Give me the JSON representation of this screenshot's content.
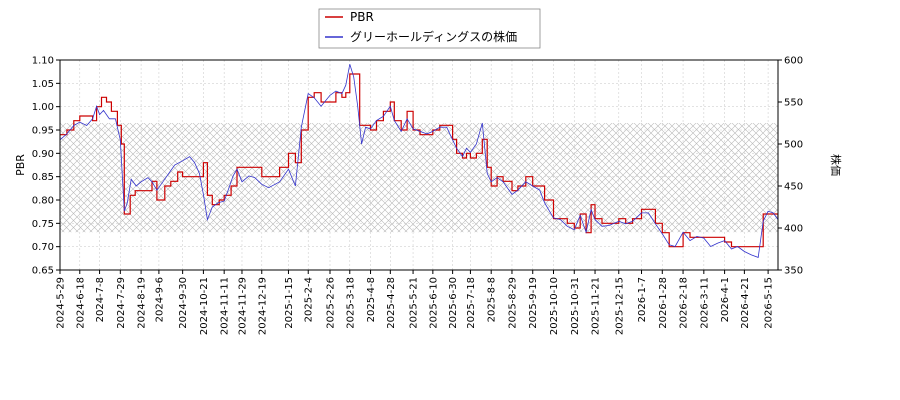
{
  "chart_data": {
    "type": "line",
    "ylabel_left": "PBR",
    "ylabel_right": "株価",
    "y_left_lim": [
      0.65,
      1.1
    ],
    "y_left_ticks": [
      "0.65",
      "0.70",
      "0.75",
      "0.80",
      "0.85",
      "0.90",
      "0.95",
      "1.00",
      "1.05",
      "1.10"
    ],
    "y_right_lim": [
      350,
      600
    ],
    "y_right_ticks": [
      "350",
      "400",
      "450",
      "500",
      "550",
      "600"
    ],
    "x_start": "2024-05-29",
    "x_end": "2026-05-25",
    "x_ticks": [
      "2024-5-29",
      "2024-6-18",
      "2024-7-8",
      "2024-7-29",
      "2024-8-19",
      "2024-9-6",
      "2024-9-30",
      "2024-10-21",
      "2024-11-11",
      "2024-11-29",
      "2024-12-19",
      "2025-1-15",
      "2025-2-4",
      "2025-2-26",
      "2025-3-18",
      "2025-4-8",
      "2025-4-28",
      "2025-5-21",
      "2025-6-10",
      "2025-6-30",
      "2025-7-18",
      "2025-8-8",
      "2025-8-29",
      "2025-9-19",
      "2025-10-10",
      "2025-10-31",
      "2025-11-21",
      "2025-12-15",
      "2026-1-7",
      "2026-1-28",
      "2026-2-18",
      "2026-3-11",
      "2026-4-1",
      "2026-4-21",
      "2026-5-15"
    ],
    "hatch_band_right": [
      395,
      525
    ],
    "grid": true,
    "legend_position": "top-center",
    "series": [
      {
        "name": "PBR",
        "axis": "left",
        "color": "#cc0000",
        "points": [
          [
            "2024-05-29",
            0.94
          ],
          [
            "2024-06-05",
            0.95
          ],
          [
            "2024-06-12",
            0.97
          ],
          [
            "2024-06-18",
            0.98
          ],
          [
            "2024-06-25",
            0.98
          ],
          [
            "2024-07-01",
            0.97
          ],
          [
            "2024-07-05",
            1.0
          ],
          [
            "2024-07-10",
            1.02
          ],
          [
            "2024-07-15",
            1.01
          ],
          [
            "2024-07-20",
            0.99
          ],
          [
            "2024-07-26",
            0.96
          ],
          [
            "2024-07-30",
            0.92
          ],
          [
            "2024-08-02",
            0.77
          ],
          [
            "2024-08-08",
            0.81
          ],
          [
            "2024-08-13",
            0.82
          ],
          [
            "2024-08-19",
            0.82
          ],
          [
            "2024-08-26",
            0.82
          ],
          [
            "2024-08-30",
            0.84
          ],
          [
            "2024-09-04",
            0.8
          ],
          [
            "2024-09-12",
            0.83
          ],
          [
            "2024-09-18",
            0.84
          ],
          [
            "2024-09-25",
            0.86
          ],
          [
            "2024-09-30",
            0.85
          ],
          [
            "2024-10-07",
            0.85
          ],
          [
            "2024-10-14",
            0.85
          ],
          [
            "2024-10-21",
            0.88
          ],
          [
            "2024-10-25",
            0.81
          ],
          [
            "2024-10-30",
            0.79
          ],
          [
            "2024-11-06",
            0.8
          ],
          [
            "2024-11-11",
            0.81
          ],
          [
            "2024-11-18",
            0.83
          ],
          [
            "2024-11-24",
            0.87
          ],
          [
            "2024-11-29",
            0.87
          ],
          [
            "2024-12-09",
            0.87
          ],
          [
            "2024-12-19",
            0.85
          ],
          [
            "2024-12-26",
            0.85
          ],
          [
            "2025-01-06",
            0.87
          ],
          [
            "2025-01-15",
            0.9
          ],
          [
            "2025-01-22",
            0.88
          ],
          [
            "2025-01-28",
            0.95
          ],
          [
            "2025-02-04",
            1.02
          ],
          [
            "2025-02-10",
            1.03
          ],
          [
            "2025-02-17",
            1.01
          ],
          [
            "2025-02-26",
            1.01
          ],
          [
            "2025-03-04",
            1.03
          ],
          [
            "2025-03-10",
            1.02
          ],
          [
            "2025-03-14",
            1.03
          ],
          [
            "2025-03-18",
            1.07
          ],
          [
            "2025-03-24",
            1.07
          ],
          [
            "2025-03-28",
            0.96
          ],
          [
            "2025-04-03",
            0.96
          ],
          [
            "2025-04-08",
            0.95
          ],
          [
            "2025-04-14",
            0.97
          ],
          [
            "2025-04-21",
            0.99
          ],
          [
            "2025-04-28",
            1.01
          ],
          [
            "2025-05-02",
            0.97
          ],
          [
            "2025-05-09",
            0.95
          ],
          [
            "2025-05-15",
            0.99
          ],
          [
            "2025-05-21",
            0.95
          ],
          [
            "2025-05-28",
            0.94
          ],
          [
            "2025-06-04",
            0.94
          ],
          [
            "2025-06-10",
            0.95
          ],
          [
            "2025-06-17",
            0.96
          ],
          [
            "2025-06-24",
            0.96
          ],
          [
            "2025-06-30",
            0.93
          ],
          [
            "2025-07-04",
            0.9
          ],
          [
            "2025-07-10",
            0.89
          ],
          [
            "2025-07-14",
            0.9
          ],
          [
            "2025-07-18",
            0.89
          ],
          [
            "2025-07-24",
            0.9
          ],
          [
            "2025-07-30",
            0.93
          ],
          [
            "2025-08-04",
            0.87
          ],
          [
            "2025-08-08",
            0.83
          ],
          [
            "2025-08-14",
            0.85
          ],
          [
            "2025-08-20",
            0.84
          ],
          [
            "2025-08-29",
            0.82
          ],
          [
            "2025-09-04",
            0.83
          ],
          [
            "2025-09-12",
            0.85
          ],
          [
            "2025-09-19",
            0.83
          ],
          [
            "2025-09-26",
            0.83
          ],
          [
            "2025-10-01",
            0.8
          ],
          [
            "2025-10-10",
            0.76
          ],
          [
            "2025-10-17",
            0.76
          ],
          [
            "2025-10-24",
            0.75
          ],
          [
            "2025-10-31",
            0.74
          ],
          [
            "2025-11-06",
            0.77
          ],
          [
            "2025-11-12",
            0.73
          ],
          [
            "2025-11-17",
            0.79
          ],
          [
            "2025-11-21",
            0.76
          ],
          [
            "2025-11-28",
            0.75
          ],
          [
            "2025-12-05",
            0.75
          ],
          [
            "2025-12-15",
            0.76
          ],
          [
            "2025-12-22",
            0.75
          ],
          [
            "2025-12-29",
            0.76
          ],
          [
            "2026-01-07",
            0.78
          ],
          [
            "2026-01-14",
            0.78
          ],
          [
            "2026-01-21",
            0.75
          ],
          [
            "2026-01-28",
            0.73
          ],
          [
            "2026-02-04",
            0.7
          ],
          [
            "2026-02-10",
            0.7
          ],
          [
            "2026-02-18",
            0.73
          ],
          [
            "2026-02-25",
            0.72
          ],
          [
            "2026-03-04",
            0.72
          ],
          [
            "2026-03-11",
            0.72
          ],
          [
            "2026-03-18",
            0.72
          ],
          [
            "2026-03-25",
            0.72
          ],
          [
            "2026-04-01",
            0.71
          ],
          [
            "2026-04-08",
            0.7
          ],
          [
            "2026-04-14",
            0.7
          ],
          [
            "2026-04-21",
            0.7
          ],
          [
            "2026-04-28",
            0.7
          ],
          [
            "2026-05-05",
            0.7
          ],
          [
            "2026-05-10",
            0.77
          ],
          [
            "2026-05-15",
            0.77
          ],
          [
            "2026-05-20",
            0.77
          ],
          [
            "2026-05-25",
            0.76
          ]
        ]
      },
      {
        "name": "グリーホールディングスの株価",
        "axis": "right",
        "color": "#3333cc",
        "points": [
          [
            "2024-05-29",
            505
          ],
          [
            "2024-06-05",
            512
          ],
          [
            "2024-06-12",
            522
          ],
          [
            "2024-06-18",
            526
          ],
          [
            "2024-06-25",
            522
          ],
          [
            "2024-07-01",
            530
          ],
          [
            "2024-07-05",
            545
          ],
          [
            "2024-07-08",
            535
          ],
          [
            "2024-07-12",
            540
          ],
          [
            "2024-07-18",
            530
          ],
          [
            "2024-07-24",
            530
          ],
          [
            "2024-07-29",
            505
          ],
          [
            "2024-08-02",
            420
          ],
          [
            "2024-08-05",
            430
          ],
          [
            "2024-08-09",
            458
          ],
          [
            "2024-08-14",
            450
          ],
          [
            "2024-08-19",
            455
          ],
          [
            "2024-08-26",
            460
          ],
          [
            "2024-08-30",
            455
          ],
          [
            "2024-09-04",
            445
          ],
          [
            "2024-09-10",
            455
          ],
          [
            "2024-09-16",
            465
          ],
          [
            "2024-09-22",
            475
          ],
          [
            "2024-09-30",
            480
          ],
          [
            "2024-10-07",
            485
          ],
          [
            "2024-10-12",
            478
          ],
          [
            "2024-10-17",
            465
          ],
          [
            "2024-10-21",
            440
          ],
          [
            "2024-10-25",
            410
          ],
          [
            "2024-10-30",
            425
          ],
          [
            "2024-11-05",
            430
          ],
          [
            "2024-11-11",
            432
          ],
          [
            "2024-11-15",
            445
          ],
          [
            "2024-11-20",
            462
          ],
          [
            "2024-11-24",
            470
          ],
          [
            "2024-11-29",
            455
          ],
          [
            "2024-12-06",
            462
          ],
          [
            "2024-12-12",
            460
          ],
          [
            "2024-12-19",
            452
          ],
          [
            "2024-12-26",
            448
          ],
          [
            "2025-01-06",
            455
          ],
          [
            "2025-01-15",
            470
          ],
          [
            "2025-01-22",
            450
          ],
          [
            "2025-01-28",
            520
          ],
          [
            "2025-02-04",
            560
          ],
          [
            "2025-02-10",
            555
          ],
          [
            "2025-02-17",
            545
          ],
          [
            "2025-02-26",
            558
          ],
          [
            "2025-03-04",
            563
          ],
          [
            "2025-03-10",
            560
          ],
          [
            "2025-03-14",
            570
          ],
          [
            "2025-03-18",
            595
          ],
          [
            "2025-03-22",
            580
          ],
          [
            "2025-03-26",
            545
          ],
          [
            "2025-03-30",
            500
          ],
          [
            "2025-04-03",
            520
          ],
          [
            "2025-04-08",
            518
          ],
          [
            "2025-04-14",
            528
          ],
          [
            "2025-04-21",
            533
          ],
          [
            "2025-04-28",
            545
          ],
          [
            "2025-05-02",
            528
          ],
          [
            "2025-05-09",
            515
          ],
          [
            "2025-05-15",
            530
          ],
          [
            "2025-05-21",
            518
          ],
          [
            "2025-05-28",
            515
          ],
          [
            "2025-06-04",
            512
          ],
          [
            "2025-06-10",
            515
          ],
          [
            "2025-06-17",
            520
          ],
          [
            "2025-06-24",
            520
          ],
          [
            "2025-06-30",
            505
          ],
          [
            "2025-07-04",
            495
          ],
          [
            "2025-07-10",
            485
          ],
          [
            "2025-07-14",
            495
          ],
          [
            "2025-07-18",
            490
          ],
          [
            "2025-07-24",
            500
          ],
          [
            "2025-07-30",
            525
          ],
          [
            "2025-08-04",
            465
          ],
          [
            "2025-08-08",
            455
          ],
          [
            "2025-08-14",
            460
          ],
          [
            "2025-08-20",
            455
          ],
          [
            "2025-08-29",
            440
          ],
          [
            "2025-09-04",
            445
          ],
          [
            "2025-09-12",
            455
          ],
          [
            "2025-09-19",
            450
          ],
          [
            "2025-09-26",
            445
          ],
          [
            "2025-10-01",
            430
          ],
          [
            "2025-10-10",
            412
          ],
          [
            "2025-10-17",
            410
          ],
          [
            "2025-10-24",
            402
          ],
          [
            "2025-10-31",
            398
          ],
          [
            "2025-11-06",
            415
          ],
          [
            "2025-11-12",
            395
          ],
          [
            "2025-11-17",
            422
          ],
          [
            "2025-11-21",
            410
          ],
          [
            "2025-11-28",
            402
          ],
          [
            "2025-12-05",
            403
          ],
          [
            "2025-12-15",
            408
          ],
          [
            "2025-12-22",
            405
          ],
          [
            "2025-12-29",
            408
          ],
          [
            "2026-01-07",
            418
          ],
          [
            "2026-01-14",
            418
          ],
          [
            "2026-01-21",
            405
          ],
          [
            "2026-01-28",
            393
          ],
          [
            "2026-02-04",
            380
          ],
          [
            "2026-02-10",
            378
          ],
          [
            "2026-02-18",
            395
          ],
          [
            "2026-02-25",
            385
          ],
          [
            "2026-03-04",
            390
          ],
          [
            "2026-03-11",
            388
          ],
          [
            "2026-03-18",
            378
          ],
          [
            "2026-03-25",
            382
          ],
          [
            "2026-04-01",
            385
          ],
          [
            "2026-04-08",
            375
          ],
          [
            "2026-04-14",
            378
          ],
          [
            "2026-04-21",
            372
          ],
          [
            "2026-04-28",
            368
          ],
          [
            "2026-05-05",
            365
          ],
          [
            "2026-05-10",
            408
          ],
          [
            "2026-05-15",
            420
          ],
          [
            "2026-05-20",
            418
          ],
          [
            "2026-05-25",
            410
          ]
        ]
      }
    ]
  }
}
